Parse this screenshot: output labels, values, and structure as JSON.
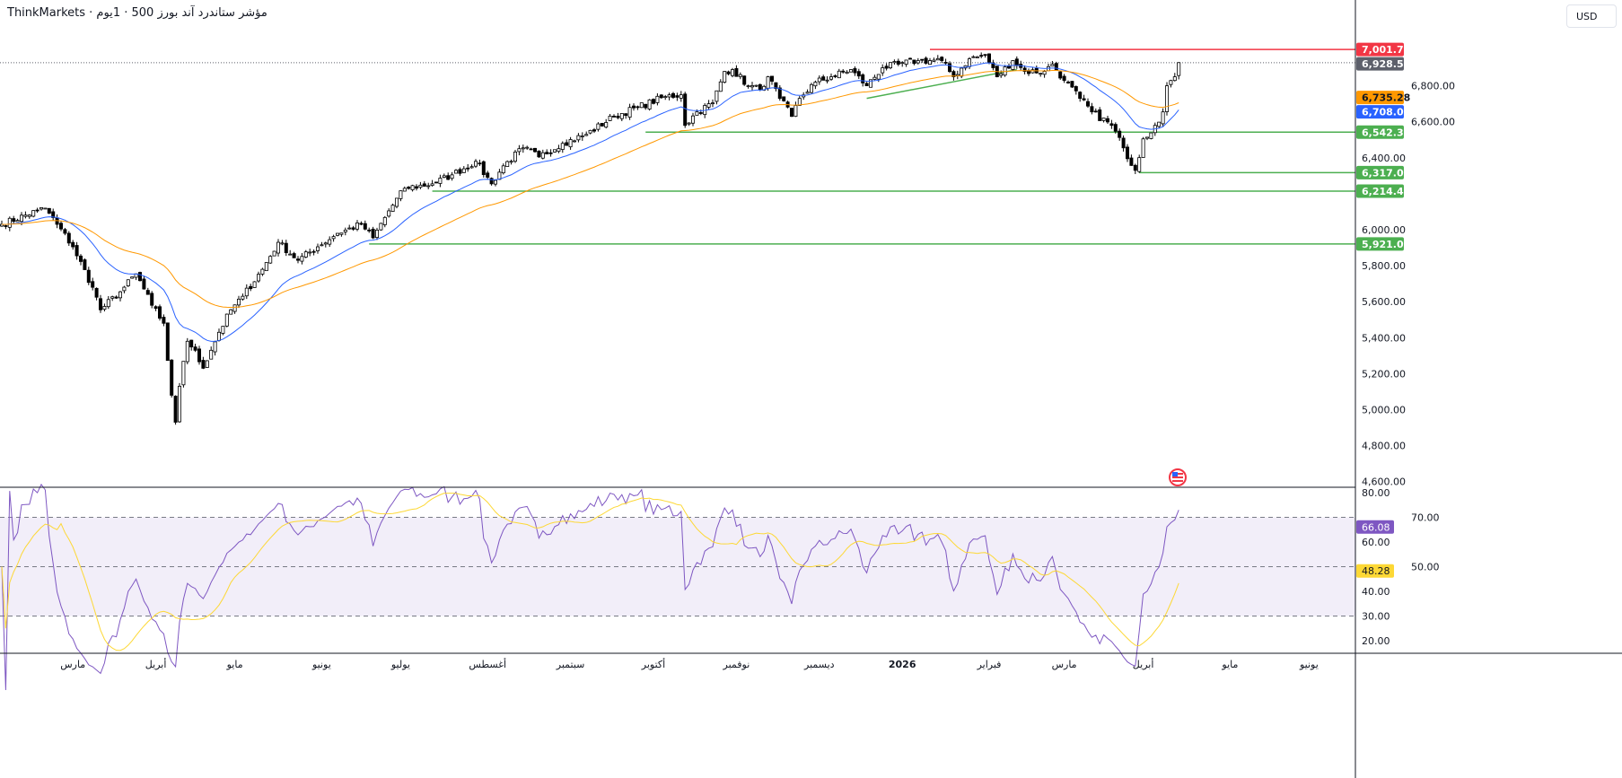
{
  "header": {
    "title": "ThinkMarkets · مؤشر ستاندرد آند بورز 500 · 1يوم",
    "currency": "USD"
  },
  "colors": {
    "red_line": "#f23645",
    "green_line": "#4caf50",
    "ema_fast": "#2962ff",
    "ema_slow": "#ff9800",
    "rsi": "#7e57c2",
    "rsi_ma": "#fdd835",
    "last_price": "#5d606b"
  },
  "chart_data": {
    "type": "candlestick",
    "title": "S&P 500 · 1D",
    "close_waypoints": [
      [
        0,
        6030
      ],
      [
        9,
        6105
      ],
      [
        11,
        6120
      ],
      [
        14,
        6030
      ],
      [
        18,
        5905
      ],
      [
        23,
        5680
      ],
      [
        25,
        5555
      ],
      [
        30,
        5655
      ],
      [
        34,
        5755
      ],
      [
        38,
        5580
      ],
      [
        41,
        5480
      ],
      [
        43,
        5080
      ],
      [
        44,
        4930
      ],
      [
        45,
        5130
      ],
      [
        47,
        5380
      ],
      [
        49,
        5330
      ],
      [
        51,
        5230
      ],
      [
        53,
        5330
      ],
      [
        55,
        5430
      ],
      [
        58,
        5555
      ],
      [
        61,
        5630
      ],
      [
        66,
        5780
      ],
      [
        70,
        5930
      ],
      [
        75,
        5830
      ],
      [
        80,
        5905
      ],
      [
        85,
        5980
      ],
      [
        91,
        6030
      ],
      [
        94,
        5955
      ],
      [
        98,
        6105
      ],
      [
        102,
        6230
      ],
      [
        109,
        6255
      ],
      [
        114,
        6305
      ],
      [
        120,
        6380
      ],
      [
        124,
        6255
      ],
      [
        127,
        6355
      ],
      [
        132,
        6455
      ],
      [
        136,
        6405
      ],
      [
        142,
        6480
      ],
      [
        148,
        6530
      ],
      [
        155,
        6630
      ],
      [
        161,
        6680
      ],
      [
        168,
        6740
      ],
      [
        172,
        6750
      ],
      [
        173,
        6580
      ],
      [
        176,
        6655
      ],
      [
        180,
        6705
      ],
      [
        183,
        6880
      ],
      [
        185,
        6890
      ],
      [
        189,
        6800
      ],
      [
        192,
        6780
      ],
      [
        194,
        6850
      ],
      [
        197,
        6730
      ],
      [
        200,
        6630
      ],
      [
        202,
        6730
      ],
      [
        206,
        6820
      ],
      [
        210,
        6850
      ],
      [
        215,
        6890
      ],
      [
        219,
        6800
      ],
      [
        223,
        6900
      ],
      [
        227,
        6920
      ],
      [
        232,
        6940
      ],
      [
        238,
        6940
      ],
      [
        241,
        6850
      ],
      [
        245,
        6950
      ],
      [
        249,
        6970
      ],
      [
        252,
        6850
      ],
      [
        256,
        6940
      ],
      [
        259,
        6880
      ],
      [
        264,
        6880
      ],
      [
        266,
        6920
      ],
      [
        269,
        6830
      ],
      [
        273,
        6730
      ],
      [
        276,
        6655
      ],
      [
        281,
        6580
      ],
      [
        284,
        6455
      ],
      [
        287,
        6330
      ],
      [
        289,
        6505
      ],
      [
        292,
        6580
      ],
      [
        294,
        6655
      ],
      [
        295,
        6800
      ],
      [
        297,
        6850
      ],
      [
        298,
        6928.55
      ]
    ],
    "price_axis": {
      "ticks": [
        "6,800.00",
        "6,600.00",
        "6,400.00",
        "6,000.00",
        "5,800.00",
        "5,600.00",
        "5,400.00",
        "5,200.00",
        "5,000.00",
        "4,800.00",
        "4,600.00"
      ],
      "tick_values": [
        6800,
        6600,
        6400,
        6000,
        5800,
        5600,
        5400,
        5200,
        5000,
        4800,
        4600
      ],
      "range": [
        4600,
        7100
      ]
    },
    "price_labels": [
      {
        "value": 7001.75,
        "text": "7,001.75",
        "color": "#f23645",
        "text_color": "#ffffff"
      },
      {
        "value": 6928.55,
        "text": "6,928.55",
        "color": "#5d606b",
        "text_color": "#ffffff"
      },
      {
        "value": 6735.28,
        "text": "6,735.28",
        "color": "#ff9800",
        "text_color": "#131722"
      },
      {
        "value": 6708.0,
        "text": "6,708.00",
        "color": "#2962ff",
        "text_color": "#ffffff"
      },
      {
        "value": 6542.35,
        "text": "6,542.35",
        "color": "#4caf50",
        "text_color": "#ffffff"
      },
      {
        "value": 6317.07,
        "text": "6,317.07",
        "color": "#4caf50",
        "text_color": "#ffffff"
      },
      {
        "value": 6214.42,
        "text": "6,214.42",
        "color": "#4caf50",
        "text_color": "#ffffff"
      },
      {
        "value": 5921.02,
        "text": "5,921.02",
        "color": "#4caf50",
        "text_color": "#ffffff"
      }
    ],
    "horizontal_lines": [
      {
        "value": 7001.75,
        "from_day": 235,
        "color": "#f23645"
      },
      {
        "value": 6542.35,
        "from_day": 163,
        "color": "#4caf50"
      },
      {
        "value": 6317.07,
        "from_day": 288,
        "color": "#4caf50"
      },
      {
        "value": 6214.42,
        "from_day": 109,
        "color": "#4caf50"
      },
      {
        "value": 5921.02,
        "from_day": 93,
        "color": "#4caf50"
      }
    ],
    "trendline": {
      "from": [
        219,
        6730
      ],
      "to": [
        257,
        6890
      ],
      "color": "#4caf50"
    },
    "ema_periods": [
      20,
      50
    ],
    "rsi": {
      "period": 14,
      "ma_period": 14,
      "last": "66.08",
      "ma_last": "48.28",
      "ticks": [
        "80.00",
        "70.00",
        "60.00",
        "50.00",
        "40.00",
        "30.00",
        "20.00"
      ],
      "tick_values": [
        80,
        70,
        60,
        50,
        40,
        30,
        20
      ],
      "overbought": 70,
      "oversold": 30,
      "mid": 50
    },
    "time_axis": [
      [
        "مارس",
        18
      ],
      [
        "أبريل",
        39
      ],
      [
        "مايو",
        59
      ],
      [
        "يونيو",
        81
      ],
      [
        "يوليو",
        101
      ],
      [
        "أغسطس",
        123
      ],
      [
        "سبتمبر",
        144
      ],
      [
        "أكتوبر",
        165
      ],
      [
        "نوفمبر",
        186
      ],
      [
        "ديسمبر",
        207
      ],
      [
        "2026",
        228
      ],
      [
        "فبراير",
        250
      ],
      [
        "مارس",
        269
      ],
      [
        "أبريل",
        289
      ],
      [
        "مايو",
        311
      ],
      [
        "يونيو",
        331
      ]
    ]
  }
}
